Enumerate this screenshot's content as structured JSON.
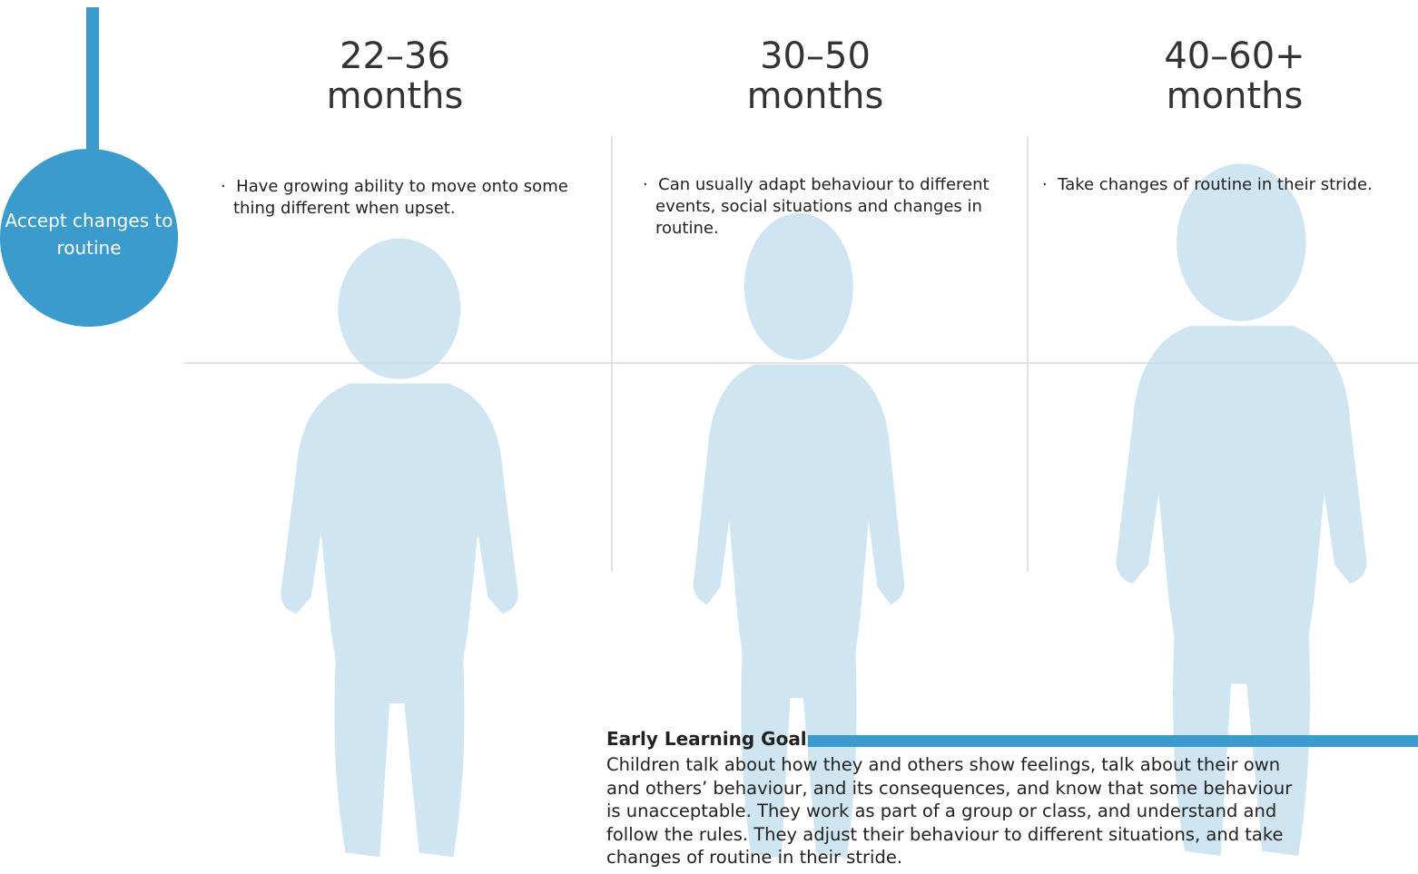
{
  "badge": "Accept changes to routine",
  "columns": [
    {
      "age": "22–36",
      "unit": "months",
      "text": "Have growing ability to move onto some thing different when upset."
    },
    {
      "age": "30–50",
      "unit": "months",
      "text": "Can usually adapt behaviour to different events, social situations and changes in routine."
    },
    {
      "age": "40–60+",
      "unit": "months",
      "text": "Take changes of routine in their stride."
    }
  ],
  "goal": {
    "title": "Early Learning Goal",
    "text": "Children talk about how they and others show feelings, talk about their own and others’ behaviour, and its consequences, and know that some behaviour is unacceptable. They work as part of a group or class, and understand and follow the rules. They adjust their behaviour to different situations, and take changes of routine in their stride."
  }
}
